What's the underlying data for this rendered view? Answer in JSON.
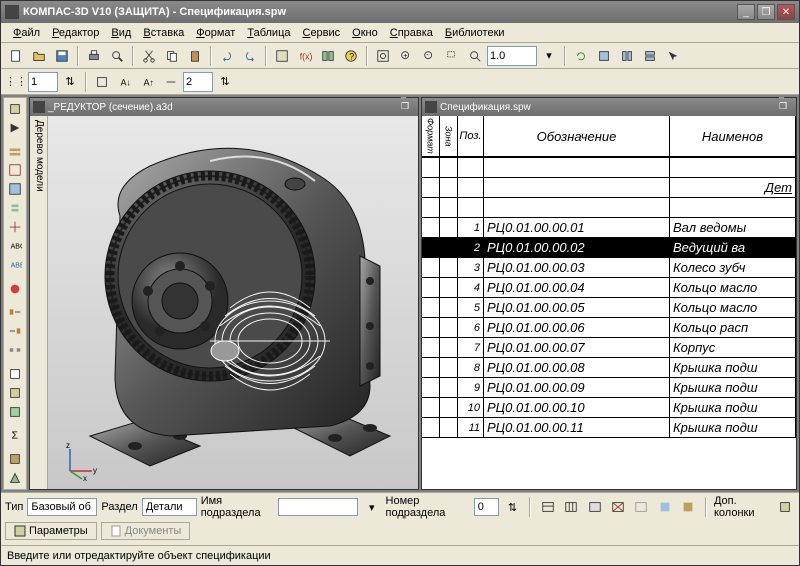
{
  "app": {
    "title": "КОМПАС-3D V10 (ЗАЩИТА) - Спецификация.spw"
  },
  "menu": [
    "Файл",
    "Редактор",
    "Вид",
    "Вставка",
    "Формат",
    "Таблица",
    "Сервис",
    "Окно",
    "Справка",
    "Библиотеки"
  ],
  "toolbar2": {
    "spin_value": "1",
    "spin2_value": "2"
  },
  "zoom_value": "1.0",
  "sub_left": {
    "title": "_РЕДУКТОР (сечение).a3d",
    "tree_label": "Дерево модели"
  },
  "sub_right": {
    "title": "Спецификация.spw"
  },
  "spec": {
    "headers": {
      "format": "Формат",
      "zone": "Зона",
      "pos": "Поз.",
      "desig": "Обозначение",
      "name": "Наименов"
    },
    "section_title": "Дет",
    "rows": [
      {
        "pos": "1",
        "desig": "РЦ0.01.00.00.01",
        "name": "Вал ведомы",
        "sel": false
      },
      {
        "pos": "2",
        "desig": "РЦ0.01.00.00.02",
        "name": "Ведущий ва",
        "sel": true
      },
      {
        "pos": "3",
        "desig": "РЦ0.01.00.00.03",
        "name": "Колесо зубч",
        "sel": false
      },
      {
        "pos": "4",
        "desig": "РЦ0.01.00.00.04",
        "name": "Кольцо масло",
        "sel": false
      },
      {
        "pos": "5",
        "desig": "РЦ0.01.00.00.05",
        "name": "Кольцо масло",
        "sel": false
      },
      {
        "pos": "6",
        "desig": "РЦ0.01.00.00.06",
        "name": "Кольцо расп",
        "sel": false
      },
      {
        "pos": "7",
        "desig": "РЦ0.01.00.00.07",
        "name": "Корпус",
        "sel": false
      },
      {
        "pos": "8",
        "desig": "РЦ0.01.00.00.08",
        "name": "Крышка подш",
        "sel": false
      },
      {
        "pos": "9",
        "desig": "РЦ0.01.00.00.09",
        "name": "Крышка подш",
        "sel": false
      },
      {
        "pos": "10",
        "desig": "РЦ0.01.00.00.10",
        "name": "Крышка подш",
        "sel": false
      },
      {
        "pos": "11",
        "desig": "РЦ0.01.00.00.11",
        "name": "Крышка подш",
        "sel": false
      }
    ]
  },
  "bottom": {
    "tip_label": "Тип",
    "tip_value": "Базовый об",
    "section_label": "Раздел",
    "section_value": "Детали",
    "subname_label": "Имя подраздела",
    "subname_value": "",
    "subnum_label": "Номер подраздела",
    "subnum_value": "0",
    "extra_cols": "Доп. колонки",
    "tab1": "Параметры",
    "tab2": "Документы"
  },
  "status": "Введите или отредактируйте объект спецификации",
  "colors": {
    "bg": "#ece9d8",
    "title_grad1": "#8a8a8a",
    "title_grad2": "#6e6e6e"
  }
}
